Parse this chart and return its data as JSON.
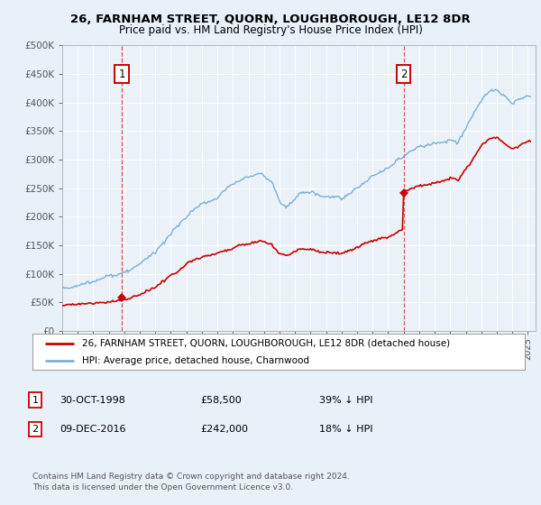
{
  "title": "26, FARNHAM STREET, QUORN, LOUGHBOROUGH, LE12 8DR",
  "subtitle": "Price paid vs. HM Land Registry's House Price Index (HPI)",
  "background_color": "#e8f0f8",
  "plot_bg_color": "#eaf1f8",
  "hpi_color": "#7ab0d8",
  "price_color": "#cc0000",
  "t1": 1998.833,
  "t2": 2017.0,
  "annotation1_price": 58500,
  "annotation2_price": 242000,
  "ylim_min": 0,
  "ylim_max": 500000,
  "yticks": [
    0,
    50000,
    100000,
    150000,
    200000,
    250000,
    300000,
    350000,
    400000,
    450000,
    500000
  ],
  "ytick_labels": [
    "£0",
    "£50K",
    "£100K",
    "£150K",
    "£200K",
    "£250K",
    "£300K",
    "£350K",
    "£400K",
    "£450K",
    "£500K"
  ],
  "legend_line1": "26, FARNHAM STREET, QUORN, LOUGHBOROUGH, LE12 8DR (detached house)",
  "legend_line2": "HPI: Average price, detached house, Charnwood",
  "note1_date": "30-OCT-1998",
  "note1_price": "£58,500",
  "note1_detail": "39% ↓ HPI",
  "note2_date": "09-DEC-2016",
  "note2_price": "£242,000",
  "note2_detail": "18% ↓ HPI",
  "footer": "Contains HM Land Registry data © Crown copyright and database right 2024.\nThis data is licensed under the Open Government Licence v3.0."
}
